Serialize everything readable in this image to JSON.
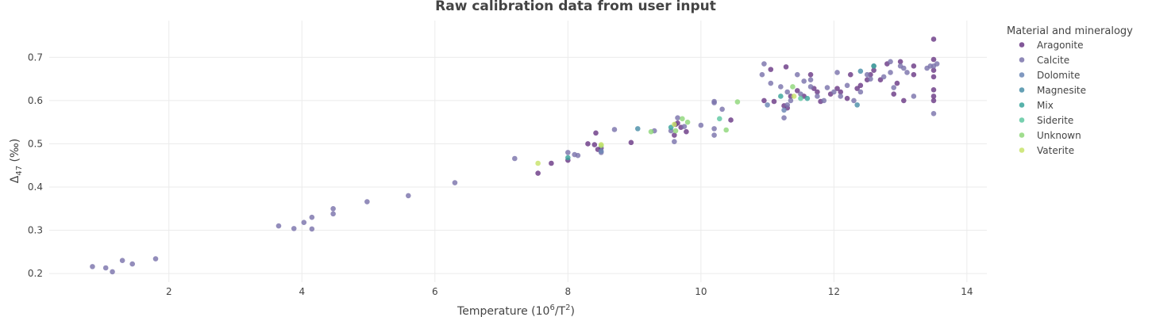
{
  "chart_data": {
    "type": "scatter",
    "title": "Raw calibration data from user input",
    "xlabel": {
      "base": "Temperature (10",
      "sup1": "6",
      "mid": "/T",
      "sup2": "2",
      "end": ")"
    },
    "ylabel": {
      "base": "Δ",
      "sub": "47",
      "end": " (‰)"
    },
    "xlim": [
      0.2,
      14.3
    ],
    "ylim": [
      0.18,
      0.785
    ],
    "xticks": [
      2,
      4,
      6,
      8,
      10,
      12,
      14
    ],
    "yticks": [
      0.2,
      0.3,
      0.4,
      0.5,
      0.6,
      0.7
    ],
    "grid": true,
    "legend": {
      "title": "Material and mineralogy",
      "placement": "right"
    },
    "series": [
      {
        "name": "Aragonite",
        "color": "#6b3a86",
        "points": [
          [
            7.55,
            0.432
          ],
          [
            7.75,
            0.455
          ],
          [
            8.0,
            0.462
          ],
          [
            8.3,
            0.5
          ],
          [
            8.4,
            0.498
          ],
          [
            8.42,
            0.525
          ],
          [
            8.45,
            0.487
          ],
          [
            8.5,
            0.49
          ],
          [
            8.95,
            0.503
          ],
          [
            9.6,
            0.52
          ],
          [
            9.62,
            0.545
          ],
          [
            9.65,
            0.548
          ],
          [
            9.7,
            0.538
          ],
          [
            9.78,
            0.528
          ],
          [
            10.45,
            0.555
          ],
          [
            10.95,
            0.6
          ],
          [
            11.05,
            0.672
          ],
          [
            11.1,
            0.598
          ],
          [
            11.25,
            0.588
          ],
          [
            11.28,
            0.678
          ],
          [
            11.3,
            0.583
          ],
          [
            11.35,
            0.61
          ],
          [
            11.45,
            0.623
          ],
          [
            11.55,
            0.61
          ],
          [
            11.65,
            0.66
          ],
          [
            11.7,
            0.628
          ],
          [
            11.75,
            0.62
          ],
          [
            11.8,
            0.598
          ],
          [
            11.95,
            0.615
          ],
          [
            12.05,
            0.628
          ],
          [
            12.1,
            0.62
          ],
          [
            12.2,
            0.605
          ],
          [
            12.25,
            0.66
          ],
          [
            12.35,
            0.628
          ],
          [
            12.4,
            0.635
          ],
          [
            12.5,
            0.648
          ],
          [
            12.55,
            0.66
          ],
          [
            12.6,
            0.67
          ],
          [
            12.7,
            0.648
          ],
          [
            12.8,
            0.685
          ],
          [
            12.9,
            0.615
          ],
          [
            12.95,
            0.64
          ],
          [
            13.0,
            0.69
          ],
          [
            13.05,
            0.6
          ],
          [
            13.2,
            0.68
          ],
          [
            13.2,
            0.66
          ],
          [
            13.5,
            0.742
          ],
          [
            13.5,
            0.695
          ],
          [
            13.5,
            0.67
          ],
          [
            13.5,
            0.655
          ],
          [
            13.5,
            0.625
          ],
          [
            13.5,
            0.61
          ],
          [
            13.5,
            0.6
          ]
        ]
      },
      {
        "name": "Calcite",
        "color": "#7b74ac",
        "points": [
          [
            0.85,
            0.216
          ],
          [
            1.05,
            0.213
          ],
          [
            1.15,
            0.204
          ],
          [
            1.3,
            0.23
          ],
          [
            1.45,
            0.222
          ],
          [
            1.8,
            0.234
          ],
          [
            3.65,
            0.31
          ],
          [
            3.88,
            0.304
          ],
          [
            4.03,
            0.318
          ],
          [
            4.15,
            0.303
          ],
          [
            4.15,
            0.33
          ],
          [
            4.47,
            0.338
          ],
          [
            4.47,
            0.35
          ],
          [
            4.98,
            0.366
          ],
          [
            5.6,
            0.38
          ],
          [
            6.3,
            0.41
          ],
          [
            7.2,
            0.466
          ],
          [
            8.0,
            0.48
          ],
          [
            8.1,
            0.475
          ],
          [
            8.15,
            0.473
          ],
          [
            8.5,
            0.48
          ],
          [
            8.7,
            0.533
          ],
          [
            9.3,
            0.53
          ],
          [
            9.55,
            0.53
          ],
          [
            9.6,
            0.505
          ],
          [
            9.65,
            0.56
          ],
          [
            9.75,
            0.54
          ],
          [
            10.0,
            0.543
          ],
          [
            10.2,
            0.52
          ],
          [
            10.2,
            0.535
          ],
          [
            10.2,
            0.595
          ],
          [
            10.2,
            0.598
          ],
          [
            10.32,
            0.58
          ],
          [
            10.92,
            0.66
          ],
          [
            10.95,
            0.685
          ],
          [
            11.05,
            0.64
          ],
          [
            11.2,
            0.632
          ],
          [
            11.25,
            0.56
          ],
          [
            11.3,
            0.59
          ],
          [
            11.3,
            0.62
          ],
          [
            11.35,
            0.6
          ],
          [
            11.45,
            0.66
          ],
          [
            11.5,
            0.615
          ],
          [
            11.55,
            0.645
          ],
          [
            11.65,
            0.648
          ],
          [
            11.65,
            0.632
          ],
          [
            11.75,
            0.61
          ],
          [
            11.85,
            0.6
          ],
          [
            11.9,
            0.63
          ],
          [
            12.0,
            0.62
          ],
          [
            12.05,
            0.665
          ],
          [
            12.1,
            0.61
          ],
          [
            12.2,
            0.635
          ],
          [
            12.3,
            0.6
          ],
          [
            12.4,
            0.62
          ],
          [
            12.5,
            0.66
          ],
          [
            12.55,
            0.65
          ],
          [
            12.6,
            0.68
          ],
          [
            12.75,
            0.655
          ],
          [
            12.85,
            0.69
          ],
          [
            12.85,
            0.665
          ],
          [
            12.9,
            0.63
          ],
          [
            13.0,
            0.68
          ],
          [
            13.05,
            0.675
          ],
          [
            13.1,
            0.665
          ],
          [
            13.2,
            0.61
          ],
          [
            13.4,
            0.675
          ],
          [
            13.45,
            0.68
          ],
          [
            13.5,
            0.68
          ],
          [
            13.5,
            0.57
          ],
          [
            13.55,
            0.685
          ]
        ]
      },
      {
        "name": "Dolomite",
        "color": "#6a86b5",
        "points": [
          [
            8.5,
            0.483
          ],
          [
            11.0,
            0.59
          ],
          [
            11.25,
            0.578
          ]
        ]
      },
      {
        "name": "Magnesite",
        "color": "#4a8fa8",
        "points": [
          [
            9.05,
            0.535
          ],
          [
            12.35,
            0.59
          ],
          [
            12.4,
            0.668
          ]
        ]
      },
      {
        "name": "Mix",
        "color": "#3aa59b",
        "points": [
          [
            8.0,
            0.468
          ],
          [
            9.55,
            0.538
          ],
          [
            11.2,
            0.61
          ],
          [
            11.6,
            0.605
          ],
          [
            12.6,
            0.68
          ]
        ]
      },
      {
        "name": "Siderite",
        "color": "#5fc8a1",
        "points": [
          [
            10.28,
            0.558
          ],
          [
            11.5,
            0.605
          ]
        ]
      },
      {
        "name": "Unknown",
        "color": "#8fd77a",
        "points": [
          [
            8.5,
            0.496
          ],
          [
            9.25,
            0.528
          ],
          [
            9.62,
            0.53
          ],
          [
            9.72,
            0.558
          ],
          [
            9.8,
            0.55
          ],
          [
            10.38,
            0.532
          ],
          [
            10.55,
            0.597
          ],
          [
            11.38,
            0.632
          ]
        ]
      },
      {
        "name": "Vaterite",
        "color": "#c8e36a",
        "points": [
          [
            7.55,
            0.455
          ],
          [
            8.5,
            0.498
          ],
          [
            9.6,
            0.545
          ],
          [
            11.4,
            0.61
          ]
        ]
      }
    ]
  }
}
